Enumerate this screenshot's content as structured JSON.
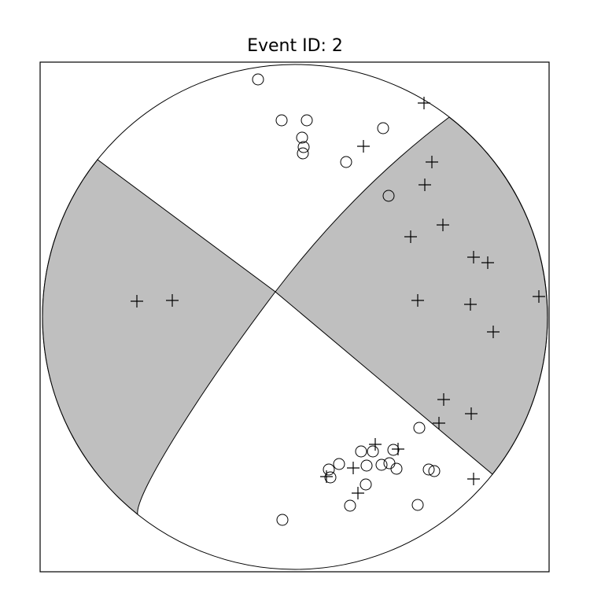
{
  "chart_data": {
    "type": "scatter",
    "title": "Event ID: 2",
    "xlim": [
      -324,
      323
    ],
    "ylim": [
      -324,
      324
    ],
    "series": [
      {
        "marker": "circle",
        "color": "#000000",
        "x": [
          -47,
          -17,
          15,
          9,
          11,
          10,
          112,
          65,
          119,
          158,
          84,
          99,
          125,
          56,
          43,
          45,
          91,
          110,
          120,
          129,
          170,
          177,
          90,
          70,
          156,
          -16
        ],
        "values": [
          302,
          250,
          250,
          228,
          216,
          208,
          240,
          197,
          154,
          -141,
          -171,
          -171,
          -169,
          -187,
          -194,
          -204,
          -189,
          -188,
          -186,
          -193,
          -194,
          -196,
          -213,
          -240,
          -239,
          -258
        ]
      },
      {
        "marker": "plus",
        "color": "#000000",
        "x": [
          164,
          87,
          174,
          165,
          188,
          147,
          227,
          245,
          -201,
          -156,
          156,
          223,
          310,
          252,
          189,
          224,
          183,
          102,
          131,
          74,
          40,
          80,
          227
        ],
        "values": [
          272,
          217,
          197,
          168,
          117,
          102,
          76,
          69,
          20,
          21,
          21,
          16,
          26,
          -19,
          -105,
          -123,
          -135,
          -162,
          -168,
          -192,
          -203,
          -224,
          -206
        ]
      }
    ]
  }
}
